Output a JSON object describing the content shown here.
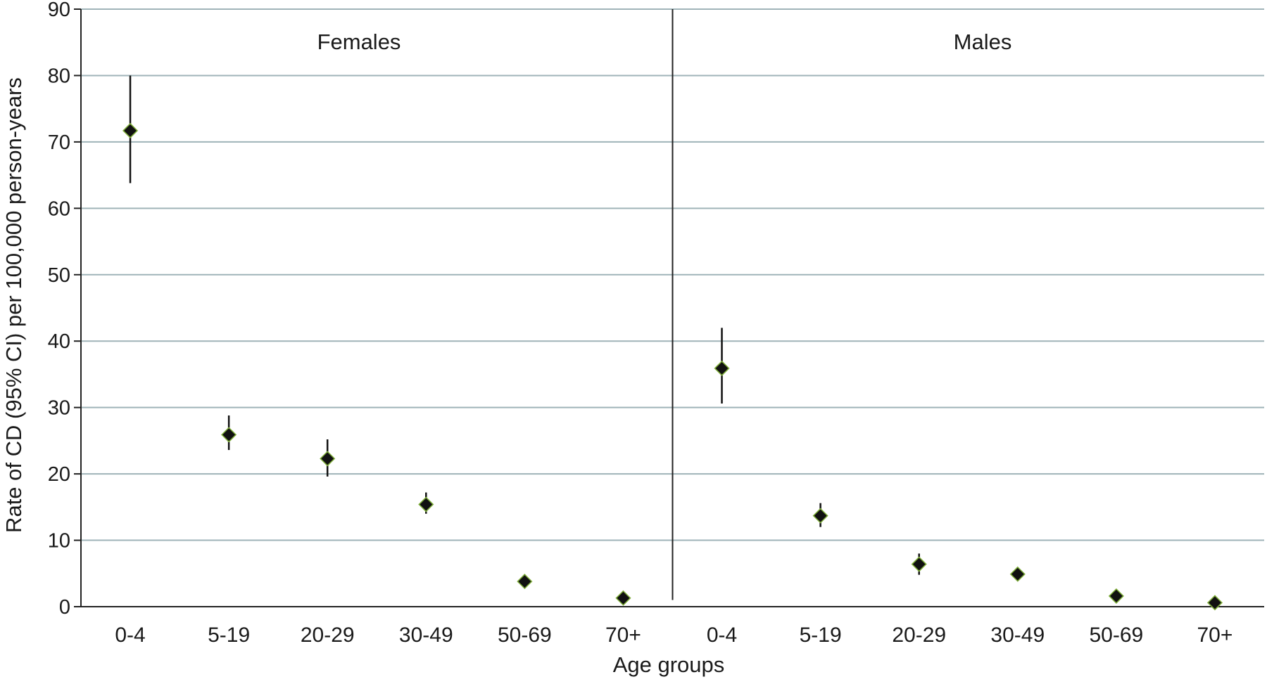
{
  "chart_data": {
    "type": "scatter",
    "ylabel": "Rate of CD (95% CI) per 100,000 person-years",
    "xlabel": "Age groups",
    "ylim": [
      0,
      90
    ],
    "yticks": [
      0,
      10,
      20,
      30,
      40,
      50,
      60,
      70,
      80,
      90
    ],
    "grid": true,
    "panels": [
      {
        "label": "Females",
        "categories": [
          "0-4",
          "5-19",
          "20-29",
          "30-49",
          "50-69",
          "70+"
        ],
        "values": [
          71.7,
          25.9,
          22.3,
          15.4,
          3.8,
          1.3
        ],
        "ci_low": [
          63.8,
          23.6,
          19.6,
          14.0,
          3.2,
          0.9
        ],
        "ci_high": [
          80.0,
          28.8,
          25.2,
          17.2,
          4.4,
          1.8
        ]
      },
      {
        "label": "Males",
        "categories": [
          "0-4",
          "5-19",
          "20-29",
          "30-49",
          "50-69",
          "70+"
        ],
        "values": [
          35.9,
          13.7,
          6.4,
          4.9,
          1.6,
          0.6
        ],
        "ci_low": [
          30.6,
          12.0,
          4.8,
          4.1,
          1.1,
          0.3
        ],
        "ci_high": [
          42.0,
          15.6,
          8.0,
          5.8,
          2.2,
          1.0
        ]
      }
    ],
    "colors": {
      "marker": "#111111",
      "marker_edge": "#7fae3a",
      "errorbar": "#111111",
      "grid": "#9fb3b8",
      "axis": "#222222"
    }
  }
}
